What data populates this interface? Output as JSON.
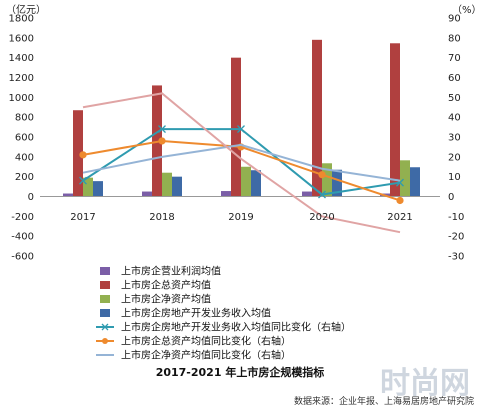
{
  "chart_data": {
    "type": "bar",
    "title": "2017-2021 年上市房企规模指标",
    "source": "数据来源：企业年报、上海易居房地产研究院",
    "watermark": "时尚网",
    "categories": [
      "2017",
      "2018",
      "2019",
      "2020",
      "2021"
    ],
    "y_left": {
      "unit": "（亿元）",
      "ylim": [
        -600,
        1800
      ],
      "ticks": [
        "-600",
        "-400",
        "-200",
        "0",
        "200",
        "400",
        "600",
        "800",
        "1000",
        "1200",
        "1400",
        "1600",
        "1800"
      ]
    },
    "y_right": {
      "unit": "（%）",
      "ylim": [
        -30,
        90
      ],
      "ticks": [
        "-30",
        "-20",
        "-10",
        "0",
        "10",
        "20",
        "30",
        "40",
        "50",
        "60",
        "70",
        "80",
        "90"
      ]
    },
    "grid": false,
    "legend_position": "bottom-left",
    "series": [
      {
        "name": "上市房企营业利润均值",
        "kind": "bar",
        "axis": "left",
        "color": "#7b5ea7",
        "values": [
          30,
          50,
          55,
          50,
          30
        ]
      },
      {
        "name": "上市房企总资产均值",
        "kind": "bar",
        "axis": "left",
        "color": "#b0403f",
        "values": [
          870,
          1120,
          1400,
          1580,
          1545
        ]
      },
      {
        "name": "上市房企净资产均值",
        "kind": "bar",
        "axis": "left",
        "color": "#92b050",
        "values": [
          190,
          240,
          300,
          335,
          365
        ]
      },
      {
        "name": "上市房企房地产开发业务收入均值",
        "kind": "bar",
        "axis": "left",
        "color": "#3e6aa6",
        "values": [
          155,
          200,
          265,
          270,
          295
        ]
      },
      {
        "name": "上市房企房地产开发业务收入均值同比变化（右轴）",
        "kind": "line",
        "axis": "right",
        "color": "#2f9bb0",
        "marker": "x",
        "values": [
          8,
          34,
          34,
          1,
          7
        ]
      },
      {
        "name": "上市房企总资产均值同比变化（右轴）",
        "kind": "line",
        "axis": "right",
        "color": "#ee8a2e",
        "marker": "circle",
        "values": [
          21,
          28,
          25,
          11,
          -2
        ]
      },
      {
        "name": "上市房企净资产均值同比变化（右轴）",
        "kind": "line",
        "axis": "right",
        "color": "#95b4d6",
        "marker": "none",
        "values": [
          12,
          20,
          26,
          14,
          8
        ]
      },
      {
        "name": "",
        "kind": "line",
        "axis": "right",
        "color": "#e0a4a4",
        "marker": "none",
        "values": [
          45,
          52,
          19,
          -10,
          -18
        ]
      }
    ]
  }
}
